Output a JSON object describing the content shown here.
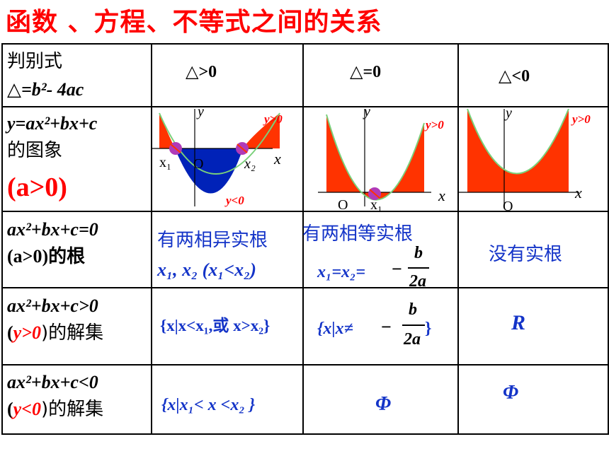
{
  "title": "函数 、方程、不等式之间的关系",
  "header": {
    "col0_line1": "判别式",
    "col0_line2": "△=b²- 4ac",
    "col1": "△>0",
    "col2": "△=0",
    "col3": "△<0"
  },
  "row_graph": {
    "label_line1": "y=ax²+bx+c",
    "label_line2": "的图象",
    "label_line3": "(a>0)",
    "graph1": {
      "y_axis": "y",
      "x_axis": "x",
      "origin": "O",
      "root1": "x₁",
      "root2": "x₂",
      "pos_label": "y>0",
      "neg_label": "y<0"
    },
    "graph2": {
      "y_axis": "y",
      "x_axis": "x",
      "origin": "O",
      "root": "x₁",
      "pos_label": "y>0"
    },
    "graph3": {
      "y_axis": "y",
      "x_axis": "x",
      "origin": "O",
      "pos_label": "y>0"
    }
  },
  "row_roots": {
    "label_line1": "ax²+bx+c=0",
    "label_line2": "(a>0)的根",
    "col1_line1": "有两相异实根",
    "col1_line2": "x₁, x₂ (x₁<x₂)",
    "col2_line1": "有两相等实根",
    "col2_prefix": "x₁=x₂=",
    "col2_minus": "−",
    "col2_num": "b",
    "col2_den": "2a",
    "col3": "没有实根"
  },
  "row_gt": {
    "label_line1": "ax²+bx+c>0",
    "label_open": "(",
    "label_cond": "y>0",
    "label_close": ")的解集",
    "col1": "{x|x<x₁,或 x>x₂}",
    "col2_prefix": "{x|x≠",
    "col2_minus": "−",
    "col2_num": "b",
    "col2_den": "2a",
    "col2_suffix": "}",
    "col3": "R"
  },
  "row_lt": {
    "label_line1": "ax²+bx+c<0",
    "label_open": "(",
    "label_cond": "y<0",
    "label_close": ")的解集",
    "col1": "{x|x₁< x <x₂ }",
    "col2": "Φ",
    "col3": "Φ"
  },
  "colors": {
    "title": "#ff0000",
    "positive_fill": "#ff3300",
    "negative_fill": "#0022b8",
    "curve": "#7ad07a",
    "root_point": "#b03ab8",
    "answer_text": "#1434c8"
  }
}
